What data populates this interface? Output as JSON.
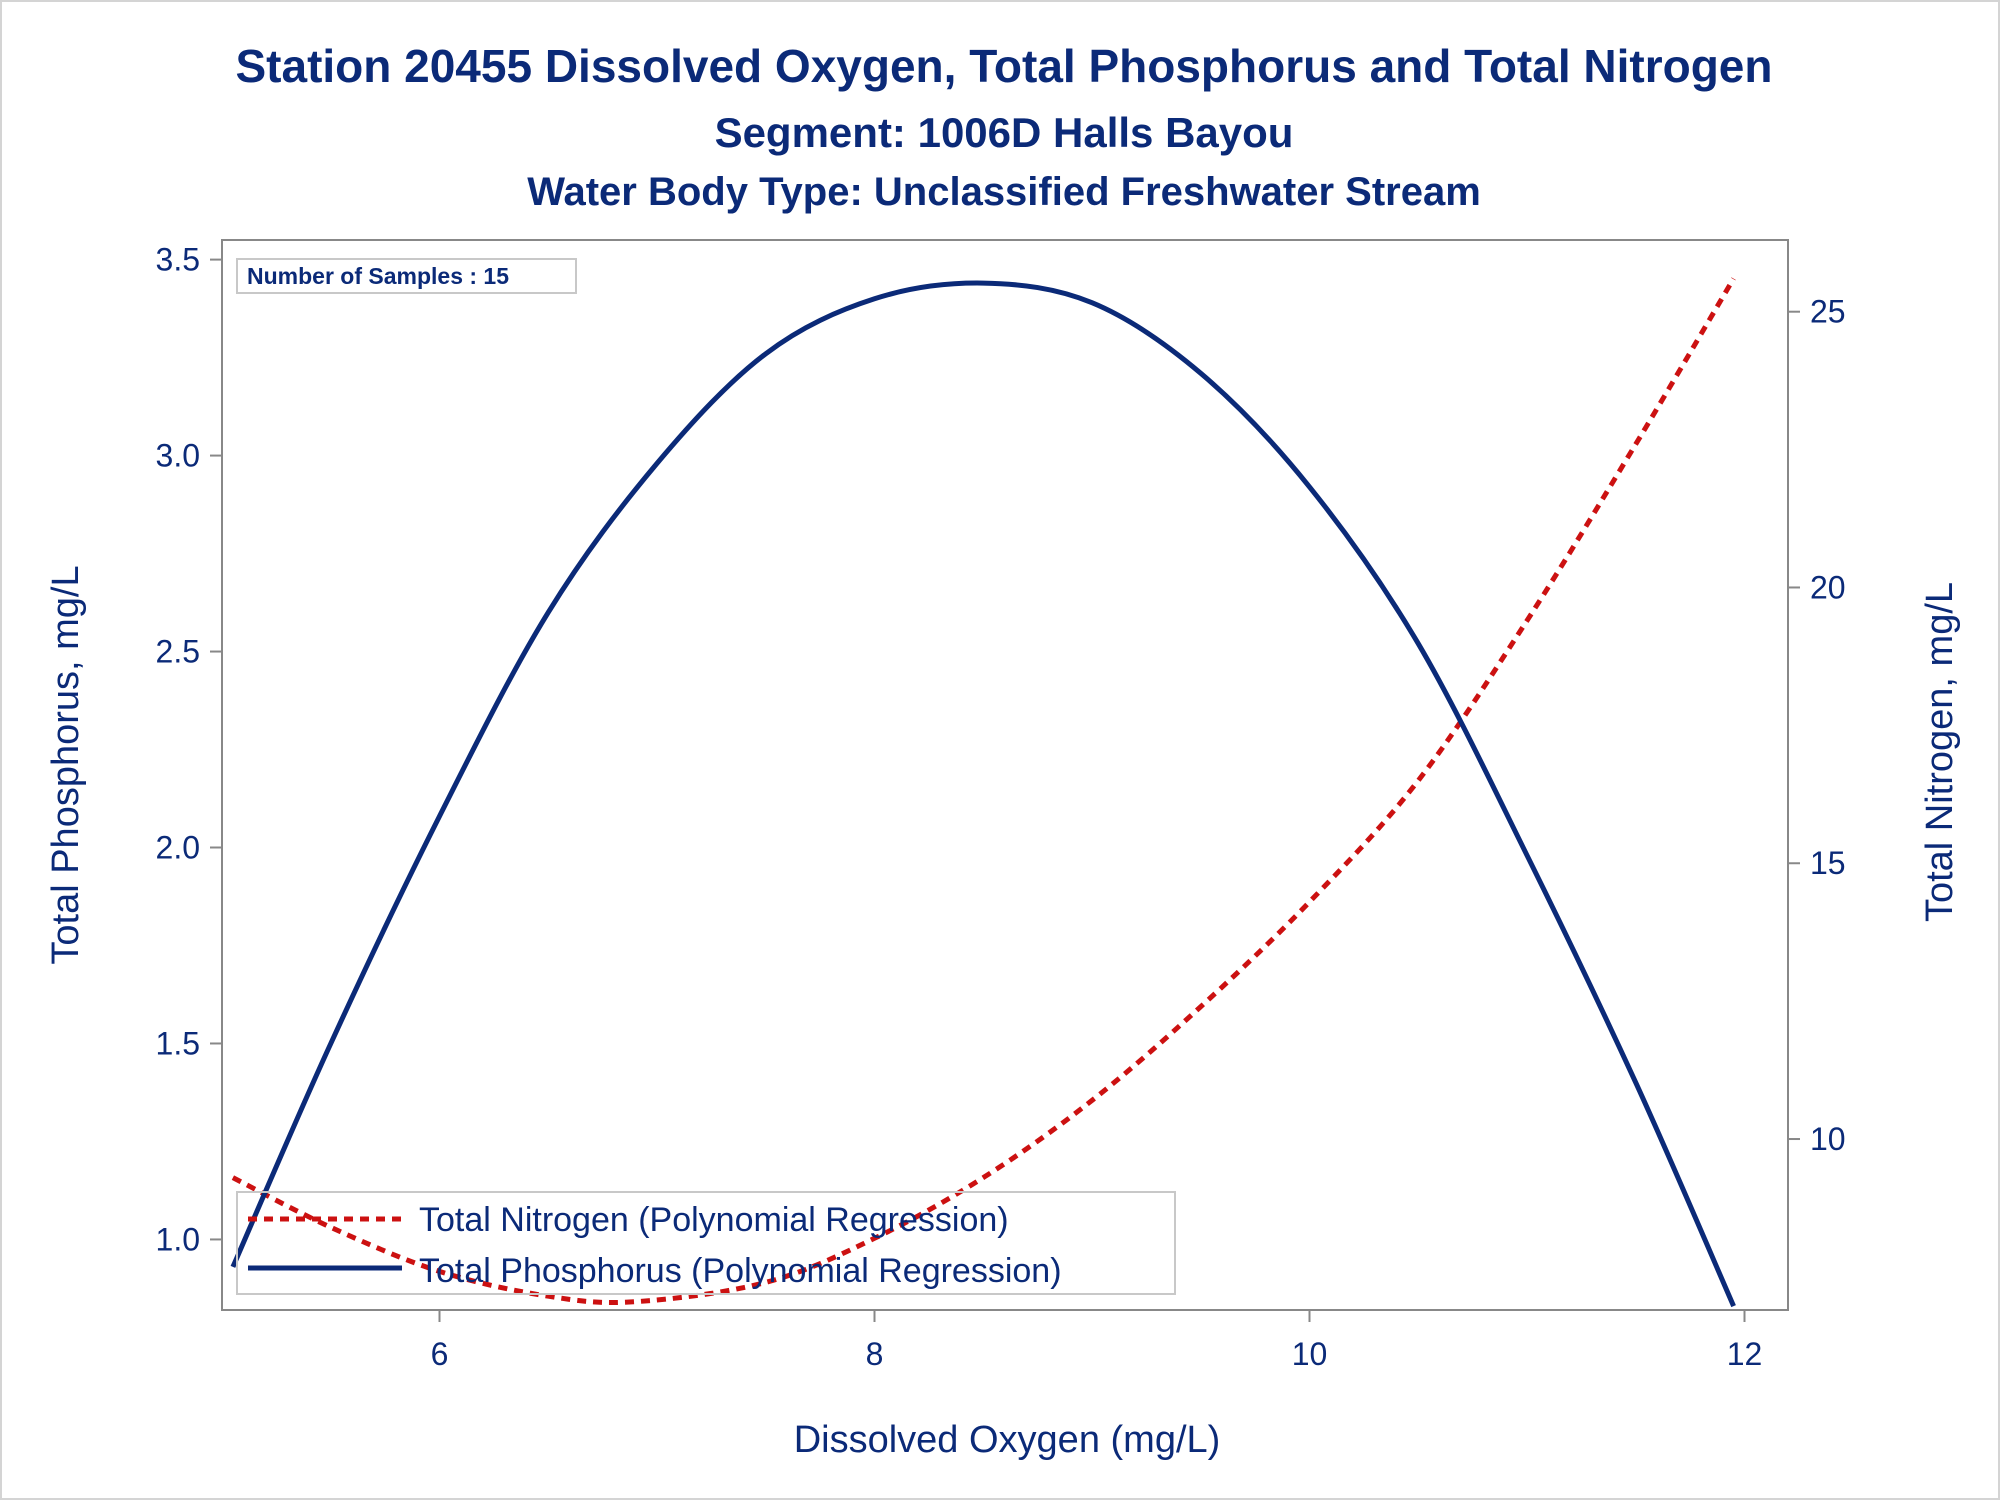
{
  "chart_data": {
    "type": "line",
    "title": "Station 20455  Dissolved Oxygen, Total Phosphorus and Total Nitrogen",
    "subtitle": "Segment: 1006D  Halls Bayou",
    "subtitle2": "Water Body Type: Unclassified Freshwater Stream",
    "xlabel": "Dissolved Oxygen (mg/L)",
    "ylabel": "Total Phosphorus, mg/L",
    "y2label": "Total Nitrogen, mg/L",
    "xlim": [
      5.0,
      12.2
    ],
    "ylim": [
      0.82,
      3.55
    ],
    "y2lim": [
      6.9,
      26.3
    ],
    "x_ticks": [
      6,
      8,
      10,
      12
    ],
    "x_tick_labels": [
      "6",
      "8",
      "10",
      "12"
    ],
    "y_ticks": [
      1.0,
      1.5,
      2.0,
      2.5,
      3.0,
      3.5
    ],
    "y_tick_labels": [
      "1.0",
      "1.5",
      "2.0",
      "2.5",
      "3.0",
      "3.5"
    ],
    "y2_ticks": [
      10,
      15,
      20,
      25
    ],
    "y2_tick_labels": [
      "10",
      "15",
      "20",
      "25"
    ],
    "inset": "Number of Samples : 15",
    "legend_position": "bottom-left",
    "colors": {
      "text": "#0b2a78",
      "phosphorus": "#0b2a78",
      "nitrogen": "#cc1111",
      "axis": "#888888"
    },
    "series": [
      {
        "name": "Total Nitrogen (Polynomial Regression)",
        "axis": "right",
        "style": "dashed",
        "x": [
          5.05,
          5.5,
          6.0,
          6.5,
          6.9,
          7.5,
          8.0,
          8.5,
          9.0,
          9.5,
          10.0,
          10.5,
          11.0,
          11.5,
          11.95
        ],
        "values": [
          9.3,
          8.4,
          7.6,
          7.15,
          7.05,
          7.4,
          8.2,
          9.3,
          10.7,
          12.4,
          14.3,
          16.5,
          19.4,
          22.6,
          25.6
        ]
      },
      {
        "name": "Total Phosphorus (Polynomial Regression)",
        "axis": "left",
        "style": "solid",
        "x": [
          5.05,
          5.5,
          6.0,
          6.5,
          7.0,
          7.5,
          8.0,
          8.5,
          9.0,
          9.5,
          10.0,
          10.5,
          11.0,
          11.5,
          11.95
        ],
        "values": [
          0.93,
          1.5,
          2.08,
          2.6,
          2.98,
          3.26,
          3.4,
          3.44,
          3.39,
          3.21,
          2.92,
          2.52,
          1.98,
          1.4,
          0.83
        ]
      }
    ]
  }
}
